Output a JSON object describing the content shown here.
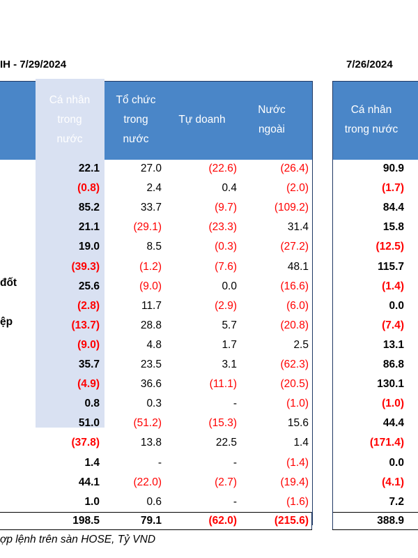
{
  "title_left": "IH - 7/29/2024",
  "title_right": "7/26/2024",
  "headers_left": [
    "Cá nhân\ntrong\nnước",
    "Tổ chức\ntrong\nnước",
    "Tự doanh",
    "Nước\nngoài"
  ],
  "header_right": "Cá nhân\ntrong nước",
  "row_labels": {
    "r7": "đốt",
    "r9": "ệp"
  },
  "rows": [
    [
      "22.1",
      "27.0",
      "(22.6)",
      "(26.4)",
      "90.9"
    ],
    [
      "(0.8)",
      "2.4",
      "0.4",
      "(2.0)",
      "(1.7)"
    ],
    [
      "85.2",
      "33.7",
      "(9.7)",
      "(109.2)",
      "84.4"
    ],
    [
      "21.1",
      "(29.1)",
      "(23.3)",
      "31.4",
      "15.8"
    ],
    [
      "19.0",
      "8.5",
      "(0.3)",
      "(27.2)",
      "(12.5)"
    ],
    [
      "(39.3)",
      "(1.2)",
      "(7.6)",
      "48.1",
      "115.7"
    ],
    [
      "25.6",
      "(9.0)",
      "0.0",
      "(16.6)",
      "(1.4)"
    ],
    [
      "(2.8)",
      "11.7",
      "(2.9)",
      "(6.0)",
      "0.0"
    ],
    [
      "(13.7)",
      "28.8",
      "5.7",
      "(20.8)",
      "(7.4)"
    ],
    [
      "(9.0)",
      "4.8",
      "1.7",
      "2.5",
      "13.1"
    ],
    [
      "35.7",
      "23.5",
      "3.1",
      "(62.3)",
      "86.8"
    ],
    [
      "(4.9)",
      "36.6",
      "(11.1)",
      "(20.5)",
      "130.1"
    ],
    [
      "0.8",
      "0.3",
      "-",
      "(1.0)",
      "(1.0)"
    ],
    [
      "51.0",
      "(51.2)",
      "(15.3)",
      "15.6",
      "44.4"
    ],
    [
      "(37.8)",
      "13.8",
      "22.5",
      "1.4",
      "(171.4)"
    ],
    [
      "1.4",
      "-",
      "-",
      "(1.4)",
      "0.0"
    ],
    [
      "44.1",
      "(22.0)",
      "(2.7)",
      "(19.4)",
      "(4.1)"
    ],
    [
      "1.0",
      "0.6",
      "-",
      "(1.6)",
      "7.2"
    ]
  ],
  "totals": [
    "198.5",
    "79.1",
    "(62.0)",
    "(215.6)",
    "388.9"
  ],
  "footnote": "ợp lệnh trên sàn HOSE, Tỷ VND"
}
